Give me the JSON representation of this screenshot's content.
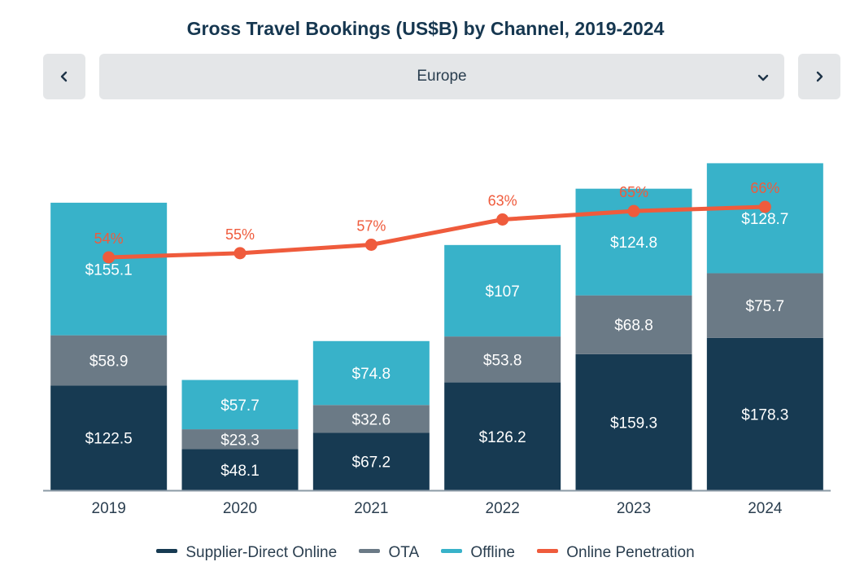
{
  "colors": {
    "supplier": "#173a52",
    "ota": "#6b7a86",
    "offline": "#38b2c9",
    "penetration": "#ef5b3c",
    "axis": "#8b9aa6"
  },
  "header": {
    "region_selector": {
      "selected": "Europe",
      "prev_icon": "chevron-left-icon",
      "next_icon": "chevron-right-icon",
      "dropdown_icon": "chevron-down-icon"
    }
  },
  "chart_data": {
    "type": "bar",
    "stacked": true,
    "title": "Gross Travel Bookings (US$B) by Channel, 2019-2024",
    "categories": [
      "2019",
      "2020",
      "2021",
      "2022",
      "2023",
      "2024"
    ],
    "series": [
      {
        "name": "Supplier-Direct Online",
        "values": [
          122.5,
          48.1,
          67.2,
          126.2,
          159.3,
          178.3
        ],
        "labels": [
          "$122.5",
          "$48.1",
          "$67.2",
          "$126.2",
          "$159.3",
          "$178.3"
        ]
      },
      {
        "name": "OTA",
        "values": [
          58.9,
          23.3,
          32.6,
          53.8,
          68.8,
          75.7
        ],
        "labels": [
          "$58.9",
          "$23.3",
          "$32.6",
          "$53.8",
          "$68.8",
          "$75.7"
        ]
      },
      {
        "name": "Offline",
        "values": [
          155.1,
          57.7,
          74.8,
          107,
          124.8,
          128.7
        ],
        "labels": [
          "$155.1",
          "$57.7",
          "$74.8",
          "$107",
          "$124.8",
          "$128.7"
        ]
      }
    ],
    "line_series": {
      "name": "Online Penetration",
      "values": [
        54,
        55,
        57,
        63,
        65,
        66
      ],
      "labels": [
        "54%",
        "55%",
        "57%",
        "63%",
        "65%",
        "66%"
      ]
    },
    "ylim": [
      0,
      385
    ],
    "legend_position": "bottom",
    "grid": false
  }
}
